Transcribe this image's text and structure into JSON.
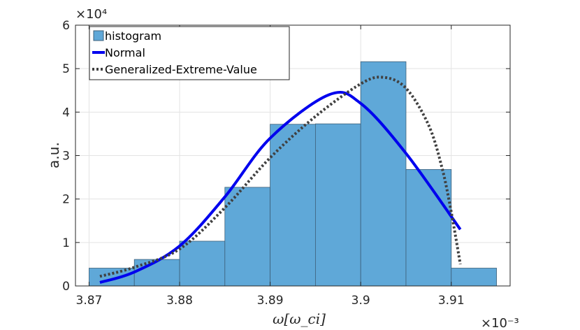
{
  "chart_data": {
    "type": "histogram",
    "xlabel": "ω[ω_ci]",
    "ylabel": "a.u.",
    "x_exponent": "×10⁻³",
    "y_exponent": "×10⁴",
    "xlim": [
      3.8685,
      3.9165
    ],
    "ylim": [
      0,
      6
    ],
    "x_ticks": [
      3.87,
      3.88,
      3.89,
      3.9,
      3.91
    ],
    "x_tick_labels": [
      "3.87",
      "3.88",
      "3.89",
      "3.9",
      "3.91"
    ],
    "y_ticks": [
      0,
      1,
      2,
      3,
      4,
      5,
      6
    ],
    "y_tick_labels": [
      "0",
      "1",
      "2",
      "3",
      "4",
      "5",
      "6"
    ],
    "grid": true,
    "legend_position": "top-left",
    "histogram": {
      "name": "histogram",
      "color": "#5fa8d8",
      "edge_color": "#3d5f78",
      "bin_edges": [
        3.87,
        3.875,
        3.88,
        3.885,
        3.89,
        3.895,
        3.9,
        3.905,
        3.91,
        3.915
      ],
      "values": [
        0.41,
        0.61,
        1.03,
        2.27,
        3.72,
        3.73,
        5.16,
        2.68,
        0.41
      ]
    },
    "series": [
      {
        "name": "Normal",
        "style": "solid",
        "color": "#0000ee",
        "x": [
          3.8712,
          3.875,
          3.88,
          3.885,
          3.89,
          3.8965,
          3.9,
          3.905,
          3.911
        ],
        "y": [
          0.08,
          0.32,
          0.92,
          2.05,
          3.4,
          4.4,
          4.2,
          3.05,
          1.3
        ]
      },
      {
        "name": "Generalized-Extreme-Value",
        "style": "dotted",
        "color": "#404040",
        "x": [
          3.8712,
          3.875,
          3.88,
          3.885,
          3.89,
          3.895,
          3.9,
          3.9025,
          3.905,
          3.9075,
          3.909,
          3.91,
          3.911
        ],
        "y": [
          0.22,
          0.43,
          0.85,
          1.8,
          2.95,
          3.9,
          4.65,
          4.8,
          4.55,
          3.7,
          2.7,
          1.7,
          0.5
        ]
      }
    ]
  }
}
